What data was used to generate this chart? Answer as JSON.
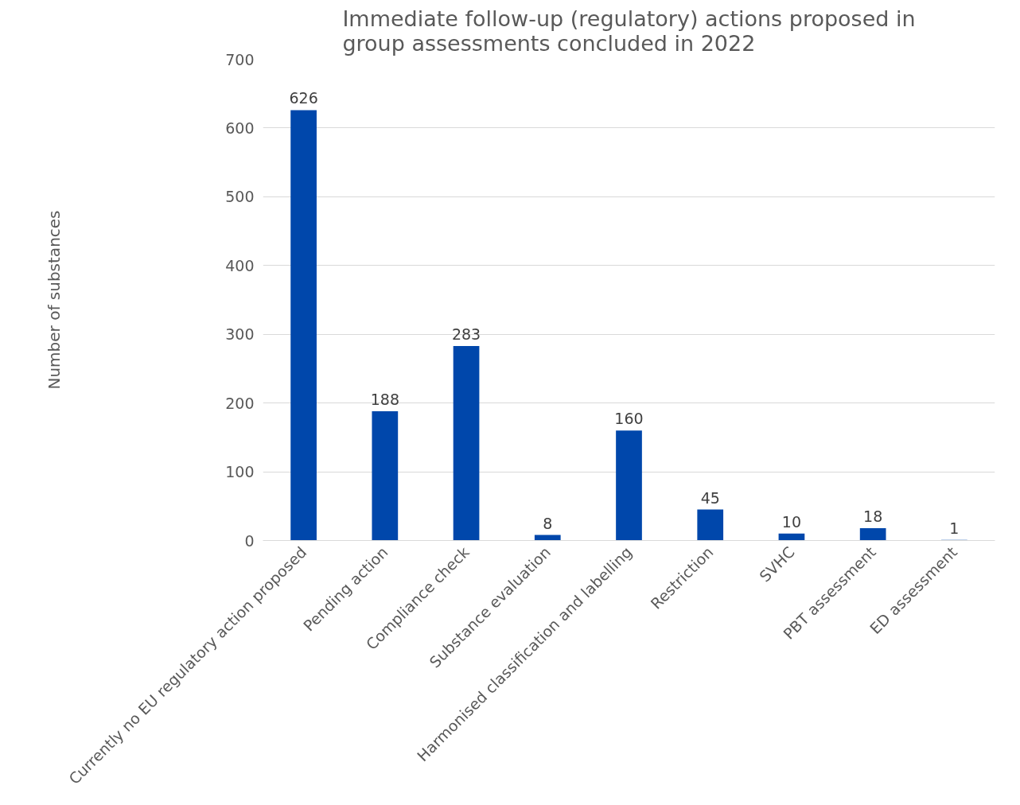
{
  "chart_data": {
    "type": "bar",
    "title": "Immediate follow-up (regulatory) actions proposed in\ngroup assessments concluded in 2022",
    "ylabel": "Number of substances",
    "categories": [
      "Currently no EU regulatory action proposed",
      "Pending action",
      "Compliance check",
      "Substance evaluation",
      "Harmonised classification and labelling",
      "Restriction",
      "SVHC",
      "PBT assessment",
      "ED assessment"
    ],
    "values": [
      626,
      188,
      283,
      8,
      160,
      45,
      10,
      18,
      1
    ],
    "color": "#0047ab",
    "ylim": [
      0,
      700
    ],
    "yticks": [
      0,
      100,
      200,
      300,
      400,
      500,
      600,
      700
    ],
    "grid": "y",
    "data_labels": true
  }
}
